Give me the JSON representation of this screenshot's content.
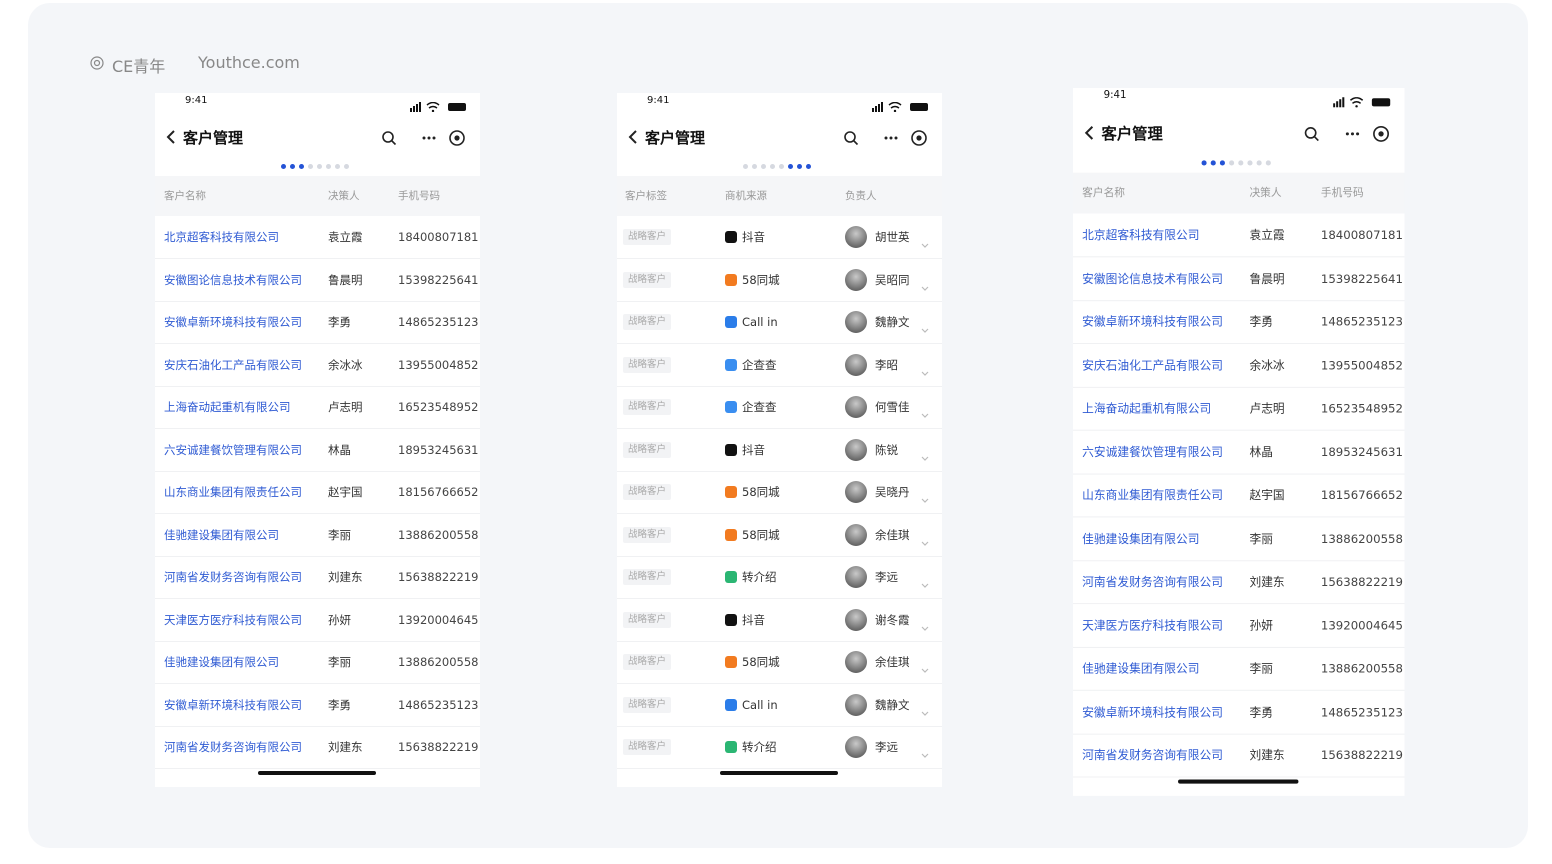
{
  "watermark": {
    "brand": "CE青年",
    "site": "Youthce.com"
  },
  "phones": [
    {
      "time": "9:41",
      "title": "客户管理",
      "active_dots": [
        0,
        1,
        2
      ],
      "columns": [
        "客户名称",
        "决策人",
        "手机号码"
      ],
      "rows": [
        [
          "北京超客科技有限公司",
          "袁立霞",
          "18400807181"
        ],
        [
          "安徽图论信息技术有限公司",
          "鲁晨明",
          "15398225641"
        ],
        [
          "安徽卓新环境科技有限公司",
          "李勇",
          "14865235123"
        ],
        [
          "安庆石油化工产品有限公司",
          "余冰冰",
          "13955004852"
        ],
        [
          "上海奋动起重机有限公司",
          "卢志明",
          "16523548952"
        ],
        [
          "六安诚建餐饮管理有限公司",
          "林晶",
          "18953245631"
        ],
        [
          "山东商业集团有限责任公司",
          "赵宇国",
          "18156766652"
        ],
        [
          "佳驰建设集团有限公司",
          "李丽",
          "13886200558"
        ],
        [
          "河南省发财务咨询有限公司",
          "刘建东",
          "15638822219"
        ],
        [
          "天津医方医疗科技有限公司",
          "孙妍",
          "13920004645"
        ],
        [
          "佳驰建设集团有限公司",
          "李丽",
          "13886200558"
        ],
        [
          "安徽卓新环境科技有限公司",
          "李勇",
          "14865235123"
        ],
        [
          "河南省发财务咨询有限公司",
          "刘建东",
          "15638822219"
        ]
      ]
    },
    {
      "time": "9:41",
      "title": "客户管理",
      "active_dots": [
        5,
        6,
        7
      ],
      "columns": [
        "客户标签",
        "商机来源",
        "负责人"
      ],
      "source_colors": [
        "#111111",
        "#f27b20",
        "#2b7de9",
        "#3a8ef0",
        "#3a8ef0",
        "#111111",
        "#f27b20",
        "#f27b20",
        "#2bb673",
        "#111111",
        "#f27b20",
        "#2b7de9",
        "#2bb673"
      ],
      "rows": [
        [
          "战略客户",
          "抖音",
          "胡世英"
        ],
        [
          "战略客户",
          "58同城",
          "吴昭同"
        ],
        [
          "战略客户",
          "Call in",
          "魏静文"
        ],
        [
          "战略客户",
          "企查查",
          "李昭"
        ],
        [
          "战略客户",
          "企查查",
          "何雪佳"
        ],
        [
          "战略客户",
          "抖音",
          "陈锐"
        ],
        [
          "战略客户",
          "58同城",
          "吴晓丹"
        ],
        [
          "战略客户",
          "58同城",
          "余佳琪"
        ],
        [
          "战略客户",
          "转介绍",
          "李远"
        ],
        [
          "战略客户",
          "抖音",
          "谢冬霞"
        ],
        [
          "战略客户",
          "58同城",
          "余佳琪"
        ],
        [
          "战略客户",
          "Call in",
          "魏静文"
        ],
        [
          "战略客户",
          "转介绍",
          "李远"
        ]
      ]
    },
    {
      "time": "9:41",
      "title": "客户管理",
      "active_dots": [
        0,
        1,
        2
      ],
      "columns": [
        "客户名称",
        "决策人",
        "手机号码"
      ],
      "rows": [
        [
          "北京超客科技有限公司",
          "袁立霞",
          "18400807181"
        ],
        [
          "安徽图论信息技术有限公司",
          "鲁晨明",
          "15398225641"
        ],
        [
          "安徽卓新环境科技有限公司",
          "李勇",
          "14865235123"
        ],
        [
          "安庆石油化工产品有限公司",
          "余冰冰",
          "13955004852"
        ],
        [
          "上海奋动起重机有限公司",
          "卢志明",
          "16523548952"
        ],
        [
          "六安诚建餐饮管理有限公司",
          "林晶",
          "18953245631"
        ],
        [
          "山东商业集团有限责任公司",
          "赵宇国",
          "18156766652"
        ],
        [
          "佳驰建设集团有限公司",
          "李丽",
          "13886200558"
        ],
        [
          "河南省发财务咨询有限公司",
          "刘建东",
          "15638822219"
        ],
        [
          "天津医方医疗科技有限公司",
          "孙妍",
          "13920004645"
        ],
        [
          "佳驰建设集团有限公司",
          "李丽",
          "13886200558"
        ],
        [
          "安徽卓新环境科技有限公司",
          "李勇",
          "14865235123"
        ],
        [
          "河南省发财务咨询有限公司",
          "刘建东",
          "15638822219"
        ]
      ]
    }
  ]
}
